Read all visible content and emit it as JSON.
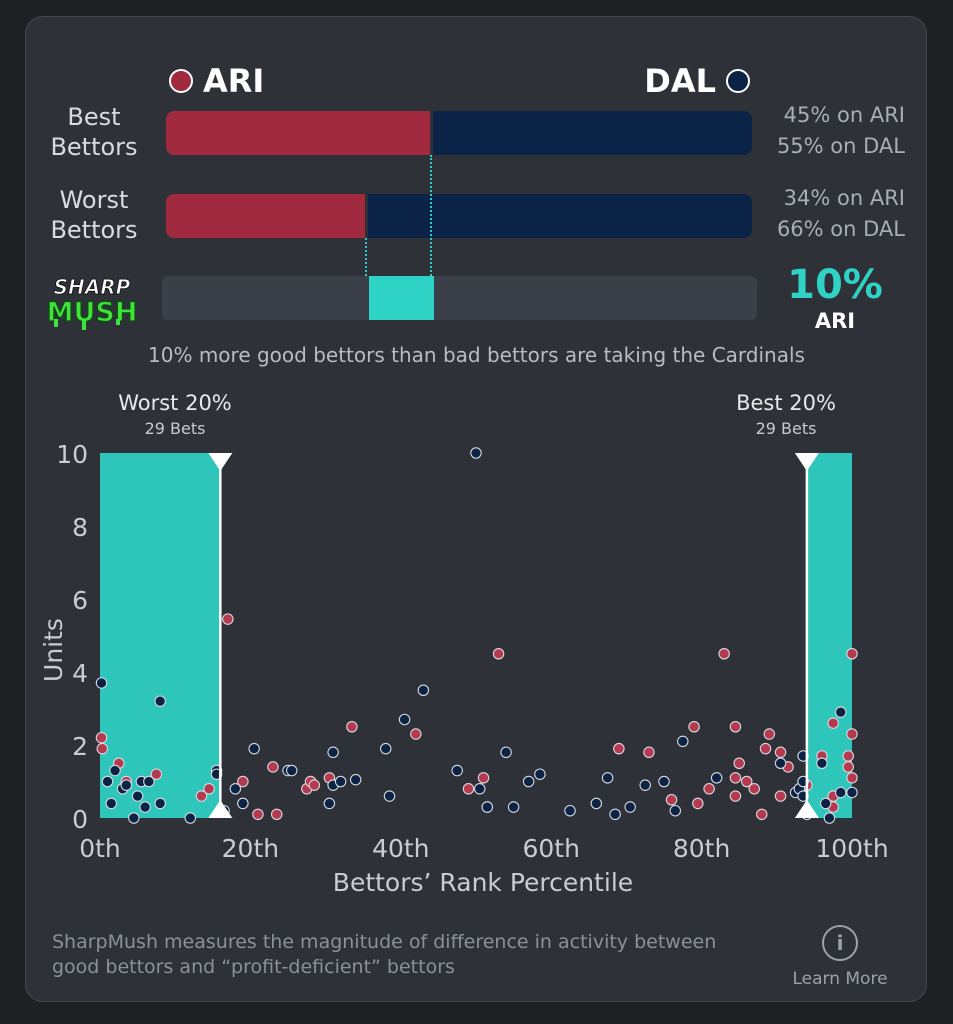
{
  "teams": {
    "left": {
      "name": "ARI",
      "color": "#a12a3f"
    },
    "right": {
      "name": "DAL",
      "color": "#0b2346"
    }
  },
  "rows": [
    {
      "label": "Best Bettors",
      "ari_pct": 45,
      "dal_pct": 55,
      "ari_text": "45% on ARI",
      "dal_text": "55% on DAL"
    },
    {
      "label": "Worst Bettors",
      "ari_pct": 34,
      "dal_pct": 66,
      "ari_text": "34% on ARI",
      "dal_text": "66% on DAL"
    }
  ],
  "sharpmush": {
    "logo_line1": "SHARP",
    "logo_line2": "MUSH",
    "value": "10%",
    "team": "ARI",
    "summary": "10% more good bettors than bad bettors are taking the Cardinals",
    "accent": "#2fd3c6"
  },
  "chart_data": {
    "type": "scatter",
    "xlabel": "Bettors’ Rank Percentile",
    "ylabel": "Units",
    "xlim": [
      0,
      100
    ],
    "ylim": [
      0,
      10
    ],
    "xticks": [
      "0th",
      "20th",
      "40th",
      "60th",
      "80th",
      "100th"
    ],
    "yticks": [
      0,
      2,
      4,
      6,
      8,
      10
    ],
    "worst_band": {
      "title": "Worst 20%",
      "subtitle": "29 Bets",
      "range": [
        0,
        16
      ]
    },
    "best_band": {
      "title": "Best 20%",
      "subtitle": "29 Bets",
      "range": [
        94,
        100
      ]
    },
    "series": [
      {
        "name": "ARI",
        "color": "#b5394f",
        "points": [
          [
            0.2,
            2.2
          ],
          [
            0.3,
            1.9
          ],
          [
            2.5,
            1.5
          ],
          [
            3.5,
            1.0
          ],
          [
            7.5,
            1.2
          ],
          [
            13.5,
            0.6
          ],
          [
            14.5,
            0.8
          ],
          [
            17,
            5.45
          ],
          [
            19,
            1.0
          ],
          [
            21,
            0.1
          ],
          [
            23,
            1.4
          ],
          [
            23.5,
            0.1
          ],
          [
            27.5,
            0.8
          ],
          [
            28,
            1.0
          ],
          [
            28.5,
            0.9
          ],
          [
            30.5,
            1.1
          ],
          [
            33.5,
            2.5
          ],
          [
            42,
            2.3
          ],
          [
            49,
            0.8
          ],
          [
            51,
            1.1
          ],
          [
            51.5,
            0.3
          ],
          [
            53,
            4.5
          ],
          [
            69,
            1.9
          ],
          [
            73,
            1.8
          ],
          [
            76,
            0.5
          ],
          [
            79,
            2.5
          ],
          [
            79.5,
            0.4
          ],
          [
            81,
            0.8
          ],
          [
            83,
            4.5
          ],
          [
            84.5,
            0.6
          ],
          [
            84.5,
            1.1
          ],
          [
            84.5,
            2.5
          ],
          [
            85,
            1.5
          ],
          [
            86,
            1.0
          ],
          [
            87,
            0.8
          ],
          [
            88,
            0.1
          ],
          [
            88.5,
            1.9
          ],
          [
            89,
            2.3
          ],
          [
            90.5,
            0.6
          ],
          [
            90.5,
            1.8
          ],
          [
            91.5,
            1.4
          ],
          [
            93.5,
            0.8
          ],
          [
            94,
            0.9
          ],
          [
            96,
            1.7
          ],
          [
            97,
            0.4
          ],
          [
            97.5,
            0.3
          ],
          [
            97.5,
            2.6
          ],
          [
            97.5,
            0.6
          ],
          [
            99.5,
            1.7
          ],
          [
            99.5,
            1.4
          ],
          [
            100,
            1.1
          ],
          [
            100,
            2.3
          ],
          [
            100,
            4.5
          ]
        ]
      },
      {
        "name": "DAL",
        "color": "#0c2346",
        "points": [
          [
            0.2,
            3.7
          ],
          [
            1,
            1.0
          ],
          [
            1.5,
            0.4
          ],
          [
            2,
            1.3
          ],
          [
            3,
            0.8
          ],
          [
            3.5,
            0.9
          ],
          [
            4.5,
            0.0
          ],
          [
            5,
            0.6
          ],
          [
            5.5,
            1.0
          ],
          [
            6,
            0.3
          ],
          [
            6.5,
            1.0
          ],
          [
            8,
            3.2
          ],
          [
            8,
            0.4
          ],
          [
            12,
            0.0
          ],
          [
            15.5,
            1.3
          ],
          [
            15.5,
            1.2
          ],
          [
            16.5,
            0.2
          ],
          [
            18,
            0.8
          ],
          [
            19,
            0.4
          ],
          [
            20.5,
            1.9
          ],
          [
            25,
            1.3
          ],
          [
            25.5,
            1.3
          ],
          [
            30.5,
            0.4
          ],
          [
            31,
            0.9
          ],
          [
            31,
            1.8
          ],
          [
            32,
            1.0
          ],
          [
            34,
            1.05
          ],
          [
            38,
            1.9
          ],
          [
            38.5,
            0.6
          ],
          [
            40.5,
            2.7
          ],
          [
            43,
            3.5
          ],
          [
            47.5,
            1.3
          ],
          [
            50,
            10.0
          ],
          [
            50.5,
            0.8
          ],
          [
            51.5,
            0.3
          ],
          [
            54,
            1.8
          ],
          [
            55,
            0.3
          ],
          [
            57,
            1.0
          ],
          [
            58.5,
            1.2
          ],
          [
            62.5,
            0.2
          ],
          [
            66,
            0.4
          ],
          [
            67.5,
            1.1
          ],
          [
            68.5,
            0.1
          ],
          [
            70.5,
            0.3
          ],
          [
            72.5,
            0.9
          ],
          [
            75,
            1.0
          ],
          [
            76.5,
            0.2
          ],
          [
            77.5,
            2.1
          ],
          [
            82,
            1.1
          ],
          [
            90.5,
            1.5
          ],
          [
            92.5,
            0.7
          ],
          [
            93,
            0.8
          ],
          [
            93.5,
            1.7
          ],
          [
            93.5,
            0.6
          ],
          [
            93.5,
            1.0
          ],
          [
            94,
            0.1
          ],
          [
            96,
            1.5
          ],
          [
            96.5,
            0.4
          ],
          [
            97,
            0.0
          ],
          [
            98.5,
            2.9
          ],
          [
            98.5,
            0.7
          ],
          [
            100,
            0.7
          ]
        ]
      }
    ]
  },
  "footer": {
    "text": "SharpMush measures the magnitude of difference in activity between good bettors and “profit-deficient” bettors",
    "learn_more": "Learn More"
  }
}
